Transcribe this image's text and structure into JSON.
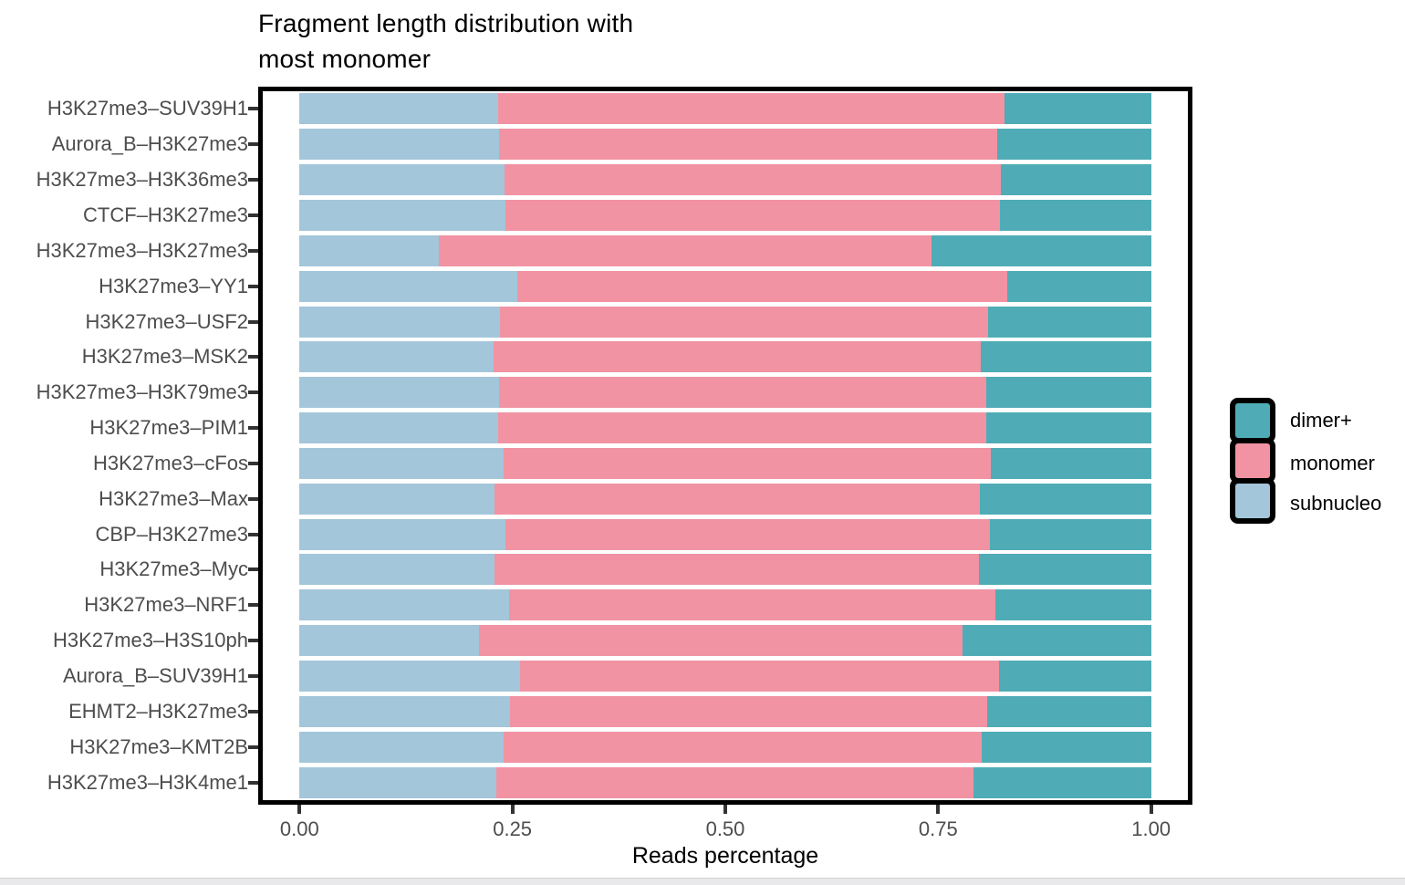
{
  "chart_data": {
    "type": "bar",
    "orientation": "horizontal",
    "stacked": true,
    "title": "Fragment length distribution with most monomer",
    "title_lines": [
      "Fragment length distribution with",
      "most monomer"
    ],
    "xlabel": "Reads percentage",
    "ylabel": "",
    "xlim": [
      0,
      1
    ],
    "grid": false,
    "x_ticks": [
      {
        "value": 0.0,
        "label": "0.00"
      },
      {
        "value": 0.25,
        "label": "0.25"
      },
      {
        "value": 0.5,
        "label": "0.50"
      },
      {
        "value": 0.75,
        "label": "0.75"
      },
      {
        "value": 1.0,
        "label": "1.00"
      }
    ],
    "categories": [
      "H3K27me3–SUV39H1",
      "Aurora_B–H3K27me3",
      "H3K27me3–H3K36me3",
      "CTCF–H3K27me3",
      "H3K27me3–H3K27me3",
      "H3K27me3–YY1",
      "H3K27me3–USF2",
      "H3K27me3–MSK2",
      "H3K27me3–H3K79me3",
      "H3K27me3–PIM1",
      "H3K27me3–cFos",
      "H3K27me3–Max",
      "CBP–H3K27me3",
      "H3K27me3–Myc",
      "H3K27me3–NRF1",
      "H3K27me3–H3S10ph",
      "Aurora_B–SUV39H1",
      "EHMT2–H3K27me3",
      "H3K27me3–KMT2B",
      "H3K27me3–H3K4me1"
    ],
    "series": [
      {
        "name": "subnucleo",
        "color": "#A3C6DA",
        "values": [
          0.233,
          0.234,
          0.241,
          0.242,
          0.164,
          0.256,
          0.235,
          0.228,
          0.234,
          0.233,
          0.24,
          0.229,
          0.242,
          0.229,
          0.246,
          0.211,
          0.259,
          0.247,
          0.24,
          0.231
        ]
      },
      {
        "name": "monomer",
        "color": "#F193A2",
        "values": [
          0.595,
          0.585,
          0.583,
          0.581,
          0.578,
          0.575,
          0.574,
          0.572,
          0.572,
          0.573,
          0.572,
          0.57,
          0.569,
          0.569,
          0.571,
          0.568,
          0.562,
          0.561,
          0.561,
          0.56
        ]
      },
      {
        "name": "dimer+",
        "color": "#4FACB6",
        "values": [
          0.172,
          0.181,
          0.176,
          0.177,
          0.258,
          0.169,
          0.191,
          0.2,
          0.194,
          0.194,
          0.188,
          0.201,
          0.189,
          0.202,
          0.183,
          0.221,
          0.179,
          0.192,
          0.199,
          0.209
        ]
      }
    ],
    "legend": {
      "position": "right",
      "items": [
        {
          "label": "dimer+",
          "color": "#4FACB6"
        },
        {
          "label": "monomer",
          "color": "#F193A2"
        },
        {
          "label": "subnucleo",
          "color": "#A3C6DA"
        }
      ]
    }
  },
  "colors": {
    "panel_border": "#000000",
    "axis_text": "#4d4d4d",
    "tick_mark": "#333333",
    "background": "#ffffff"
  }
}
